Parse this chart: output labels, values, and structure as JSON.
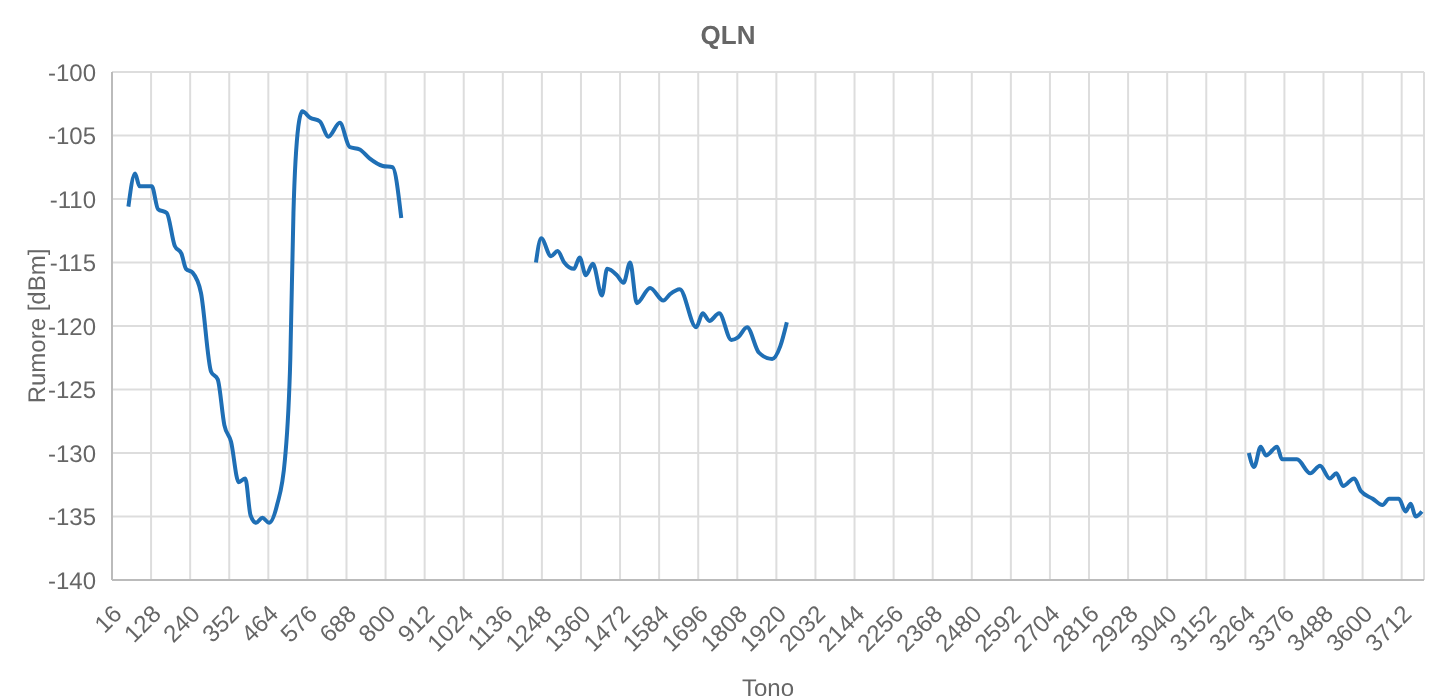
{
  "chart_data": {
    "type": "line",
    "title": "QLN",
    "xlabel": "Tono",
    "ylabel": "Rumore [dBm]",
    "series": [
      {
        "color": "#1f6fb5",
        "x": [
          63,
          82,
          95,
          130,
          148,
          173,
          196,
          215,
          228,
          247,
          271,
          300,
          319,
          338,
          357,
          379,
          398,
          413,
          429,
          447,
          466,
          489,
          512,
          527,
          536,
          550,
          561,
          584,
          612,
          636,
          669,
          697,
          726,
          754,
          792,
          820,
          845
        ],
        "values": [
          -110.6,
          -108.0,
          -109.0,
          -109.0,
          -110.8,
          -111.1,
          -113.7,
          -114.3,
          -115.5,
          -115.8,
          -117.4,
          -123.6,
          -124.2,
          -127.8,
          -129.1,
          -132.3,
          -132.0,
          -134.9,
          -135.5,
          -135.1,
          -135.5,
          -134.1,
          -130.4,
          -122.6,
          -111.1,
          -104.3,
          -103.1,
          -103.6,
          -103.9,
          -105.1,
          -104.0,
          -105.9,
          -106.1,
          -106.8,
          -107.4,
          -107.5,
          -111.5
        ]
      },
      {
        "color": "#1f6fb5",
        "x": [
          1231,
          1246,
          1274,
          1293,
          1312,
          1340,
          1356,
          1374,
          1394,
          1420,
          1435,
          1463,
          1482,
          1501,
          1520,
          1558,
          1596,
          1615,
          1643,
          1690,
          1709,
          1728,
          1756,
          1791,
          1810,
          1836,
          1870,
          1908,
          1931,
          1950
        ],
        "values": [
          -115.0,
          -113.1,
          -114.5,
          -114.1,
          -115.0,
          -115.5,
          -114.6,
          -116.0,
          -115.1,
          -117.6,
          -115.5,
          -116.0,
          -116.6,
          -115.0,
          -118.2,
          -117.0,
          -118.0,
          -117.5,
          -117.1,
          -120.1,
          -119.0,
          -119.6,
          -119.0,
          -121.1,
          -120.9,
          -120.1,
          -122.1,
          -122.6,
          -121.6,
          -119.7
        ]
      },
      {
        "color": "#1f6fb5",
        "x": [
          3274,
          3289,
          3308,
          3323,
          3355,
          3369,
          3412,
          3450,
          3478,
          3506,
          3525,
          3544,
          3576,
          3595,
          3629,
          3657,
          3676,
          3704,
          3723,
          3738,
          3752,
          3770
        ],
        "values": [
          -130.0,
          -131.1,
          -129.5,
          -130.2,
          -129.5,
          -130.5,
          -130.5,
          -131.6,
          -131.0,
          -132.0,
          -131.6,
          -132.6,
          -132.0,
          -133.0,
          -133.6,
          -134.1,
          -133.6,
          -133.6,
          -134.6,
          -134.0,
          -135.0,
          -134.6
        ]
      }
    ],
    "xlim": [
      16,
      3776
    ],
    "xticks": [
      16,
      128,
      240,
      352,
      464,
      576,
      688,
      800,
      912,
      1024,
      1136,
      1248,
      1360,
      1472,
      1584,
      1696,
      1808,
      1920,
      2032,
      2144,
      2256,
      2368,
      2480,
      2592,
      2704,
      2816,
      2928,
      3040,
      3152,
      3264,
      3376,
      3488,
      3600,
      3712
    ],
    "ylim": [
      -140,
      -100
    ],
    "yticks": [
      -140,
      -135,
      -130,
      -125,
      -120,
      -115,
      -110,
      -105,
      -100
    ],
    "grid": true,
    "legend": false,
    "marker": "none",
    "line_style": "solid"
  }
}
